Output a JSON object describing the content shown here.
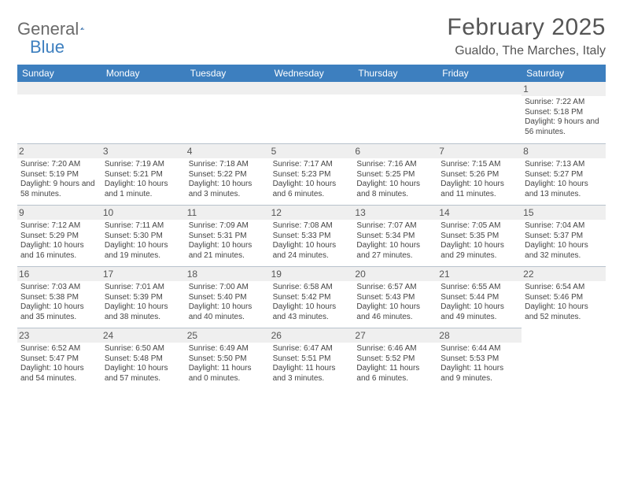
{
  "logo": {
    "text1": "General",
    "text2": "Blue",
    "icon_color": "#2a68a8"
  },
  "title": "February 2025",
  "location": "Gualdo, The Marches, Italy",
  "colors": {
    "header_bg": "#3d7fbf",
    "header_fg": "#ffffff",
    "daynum_bg": "#efefef",
    "border": "#b8c2cc",
    "text": "#444444"
  },
  "weekdays": [
    "Sunday",
    "Monday",
    "Tuesday",
    "Wednesday",
    "Thursday",
    "Friday",
    "Saturday"
  ],
  "weeks": [
    [
      {
        "n": "",
        "sunrise": "",
        "sunset": "",
        "daylight": ""
      },
      {
        "n": "",
        "sunrise": "",
        "sunset": "",
        "daylight": ""
      },
      {
        "n": "",
        "sunrise": "",
        "sunset": "",
        "daylight": ""
      },
      {
        "n": "",
        "sunrise": "",
        "sunset": "",
        "daylight": ""
      },
      {
        "n": "",
        "sunrise": "",
        "sunset": "",
        "daylight": ""
      },
      {
        "n": "",
        "sunrise": "",
        "sunset": "",
        "daylight": ""
      },
      {
        "n": "1",
        "sunrise": "Sunrise: 7:22 AM",
        "sunset": "Sunset: 5:18 PM",
        "daylight": "Daylight: 9 hours and 56 minutes."
      }
    ],
    [
      {
        "n": "2",
        "sunrise": "Sunrise: 7:20 AM",
        "sunset": "Sunset: 5:19 PM",
        "daylight": "Daylight: 9 hours and 58 minutes."
      },
      {
        "n": "3",
        "sunrise": "Sunrise: 7:19 AM",
        "sunset": "Sunset: 5:21 PM",
        "daylight": "Daylight: 10 hours and 1 minute."
      },
      {
        "n": "4",
        "sunrise": "Sunrise: 7:18 AM",
        "sunset": "Sunset: 5:22 PM",
        "daylight": "Daylight: 10 hours and 3 minutes."
      },
      {
        "n": "5",
        "sunrise": "Sunrise: 7:17 AM",
        "sunset": "Sunset: 5:23 PM",
        "daylight": "Daylight: 10 hours and 6 minutes."
      },
      {
        "n": "6",
        "sunrise": "Sunrise: 7:16 AM",
        "sunset": "Sunset: 5:25 PM",
        "daylight": "Daylight: 10 hours and 8 minutes."
      },
      {
        "n": "7",
        "sunrise": "Sunrise: 7:15 AM",
        "sunset": "Sunset: 5:26 PM",
        "daylight": "Daylight: 10 hours and 11 minutes."
      },
      {
        "n": "8",
        "sunrise": "Sunrise: 7:13 AM",
        "sunset": "Sunset: 5:27 PM",
        "daylight": "Daylight: 10 hours and 13 minutes."
      }
    ],
    [
      {
        "n": "9",
        "sunrise": "Sunrise: 7:12 AM",
        "sunset": "Sunset: 5:29 PM",
        "daylight": "Daylight: 10 hours and 16 minutes."
      },
      {
        "n": "10",
        "sunrise": "Sunrise: 7:11 AM",
        "sunset": "Sunset: 5:30 PM",
        "daylight": "Daylight: 10 hours and 19 minutes."
      },
      {
        "n": "11",
        "sunrise": "Sunrise: 7:09 AM",
        "sunset": "Sunset: 5:31 PM",
        "daylight": "Daylight: 10 hours and 21 minutes."
      },
      {
        "n": "12",
        "sunrise": "Sunrise: 7:08 AM",
        "sunset": "Sunset: 5:33 PM",
        "daylight": "Daylight: 10 hours and 24 minutes."
      },
      {
        "n": "13",
        "sunrise": "Sunrise: 7:07 AM",
        "sunset": "Sunset: 5:34 PM",
        "daylight": "Daylight: 10 hours and 27 minutes."
      },
      {
        "n": "14",
        "sunrise": "Sunrise: 7:05 AM",
        "sunset": "Sunset: 5:35 PM",
        "daylight": "Daylight: 10 hours and 29 minutes."
      },
      {
        "n": "15",
        "sunrise": "Sunrise: 7:04 AM",
        "sunset": "Sunset: 5:37 PM",
        "daylight": "Daylight: 10 hours and 32 minutes."
      }
    ],
    [
      {
        "n": "16",
        "sunrise": "Sunrise: 7:03 AM",
        "sunset": "Sunset: 5:38 PM",
        "daylight": "Daylight: 10 hours and 35 minutes."
      },
      {
        "n": "17",
        "sunrise": "Sunrise: 7:01 AM",
        "sunset": "Sunset: 5:39 PM",
        "daylight": "Daylight: 10 hours and 38 minutes."
      },
      {
        "n": "18",
        "sunrise": "Sunrise: 7:00 AM",
        "sunset": "Sunset: 5:40 PM",
        "daylight": "Daylight: 10 hours and 40 minutes."
      },
      {
        "n": "19",
        "sunrise": "Sunrise: 6:58 AM",
        "sunset": "Sunset: 5:42 PM",
        "daylight": "Daylight: 10 hours and 43 minutes."
      },
      {
        "n": "20",
        "sunrise": "Sunrise: 6:57 AM",
        "sunset": "Sunset: 5:43 PM",
        "daylight": "Daylight: 10 hours and 46 minutes."
      },
      {
        "n": "21",
        "sunrise": "Sunrise: 6:55 AM",
        "sunset": "Sunset: 5:44 PM",
        "daylight": "Daylight: 10 hours and 49 minutes."
      },
      {
        "n": "22",
        "sunrise": "Sunrise: 6:54 AM",
        "sunset": "Sunset: 5:46 PM",
        "daylight": "Daylight: 10 hours and 52 minutes."
      }
    ],
    [
      {
        "n": "23",
        "sunrise": "Sunrise: 6:52 AM",
        "sunset": "Sunset: 5:47 PM",
        "daylight": "Daylight: 10 hours and 54 minutes."
      },
      {
        "n": "24",
        "sunrise": "Sunrise: 6:50 AM",
        "sunset": "Sunset: 5:48 PM",
        "daylight": "Daylight: 10 hours and 57 minutes."
      },
      {
        "n": "25",
        "sunrise": "Sunrise: 6:49 AM",
        "sunset": "Sunset: 5:50 PM",
        "daylight": "Daylight: 11 hours and 0 minutes."
      },
      {
        "n": "26",
        "sunrise": "Sunrise: 6:47 AM",
        "sunset": "Sunset: 5:51 PM",
        "daylight": "Daylight: 11 hours and 3 minutes."
      },
      {
        "n": "27",
        "sunrise": "Sunrise: 6:46 AM",
        "sunset": "Sunset: 5:52 PM",
        "daylight": "Daylight: 11 hours and 6 minutes."
      },
      {
        "n": "28",
        "sunrise": "Sunrise: 6:44 AM",
        "sunset": "Sunset: 5:53 PM",
        "daylight": "Daylight: 11 hours and 9 minutes."
      },
      {
        "n": "",
        "sunrise": "",
        "sunset": "",
        "daylight": ""
      }
    ]
  ]
}
